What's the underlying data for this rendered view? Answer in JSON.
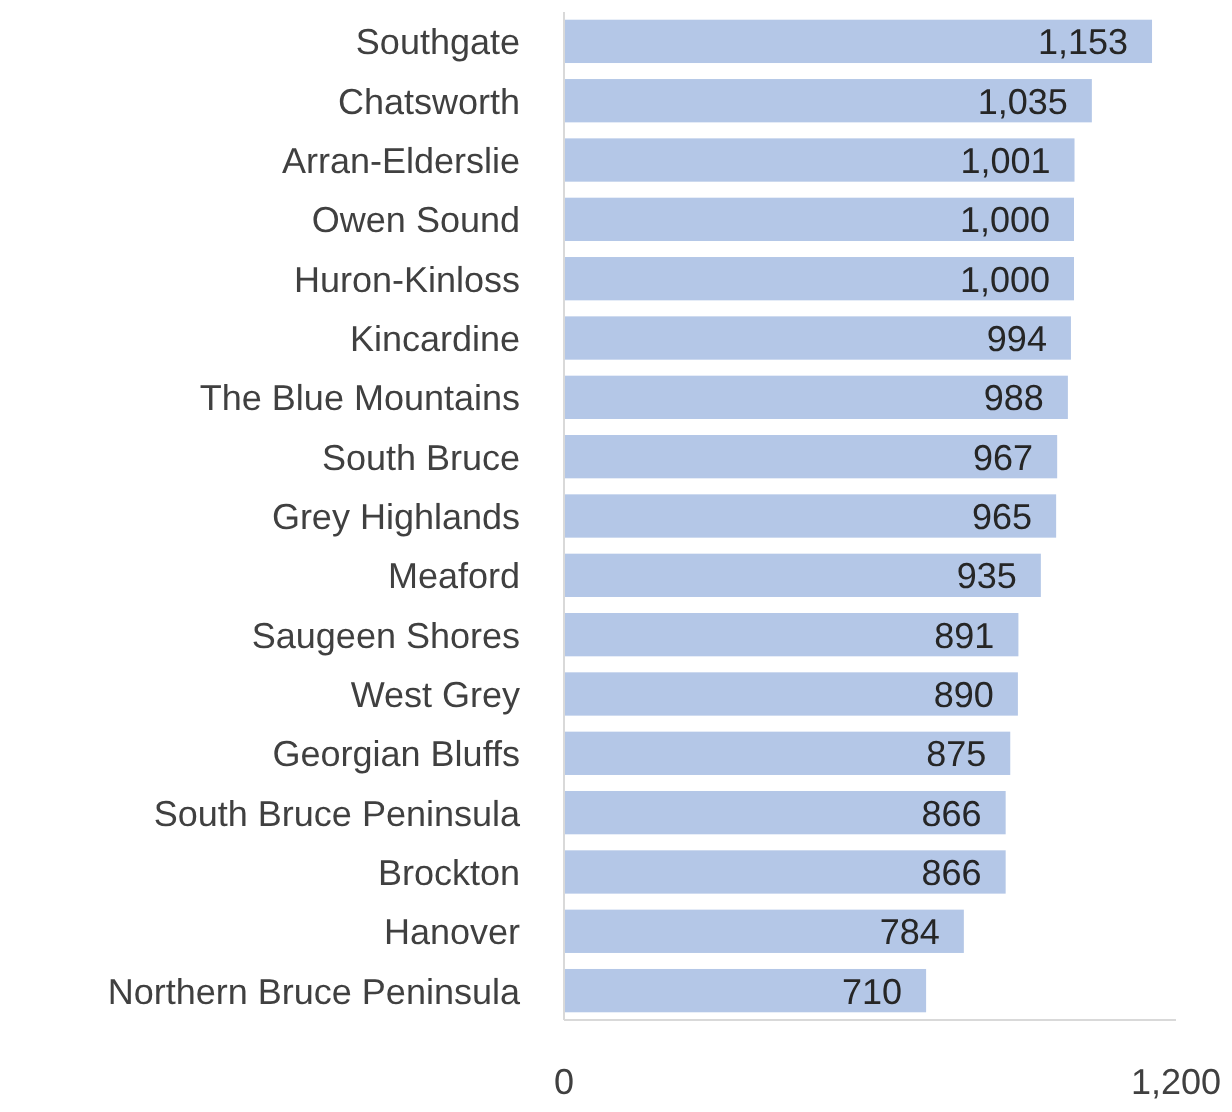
{
  "chart_data": {
    "type": "bar",
    "orientation": "horizontal",
    "categories": [
      "Southgate",
      "Chatsworth",
      "Arran-Elderslie",
      "Owen Sound",
      "Huron-Kinloss",
      "Kincardine",
      "The Blue Mountains",
      "South Bruce",
      "Grey Highlands",
      "Meaford",
      "Saugeen Shores",
      "West Grey",
      "Georgian Bluffs",
      "South Bruce Peninsula",
      "Brockton",
      "Hanover",
      "Northern Bruce Peninsula"
    ],
    "values": [
      1153,
      1035,
      1001,
      1000,
      1000,
      994,
      988,
      967,
      965,
      935,
      891,
      890,
      875,
      866,
      866,
      784,
      710
    ],
    "color": "#b4c7e7",
    "xlim": [
      0,
      1200
    ],
    "xticks": [
      0,
      {
        "value": 1200,
        "label": "1,200"
      }
    ],
    "value_labels": [
      "1,153",
      "1,035",
      "1,001",
      "1,000",
      "1,000",
      "994",
      "988",
      "967",
      "965",
      "935",
      "891",
      "890",
      "875",
      "866",
      "866",
      "784",
      "710"
    ],
    "grid": false
  }
}
